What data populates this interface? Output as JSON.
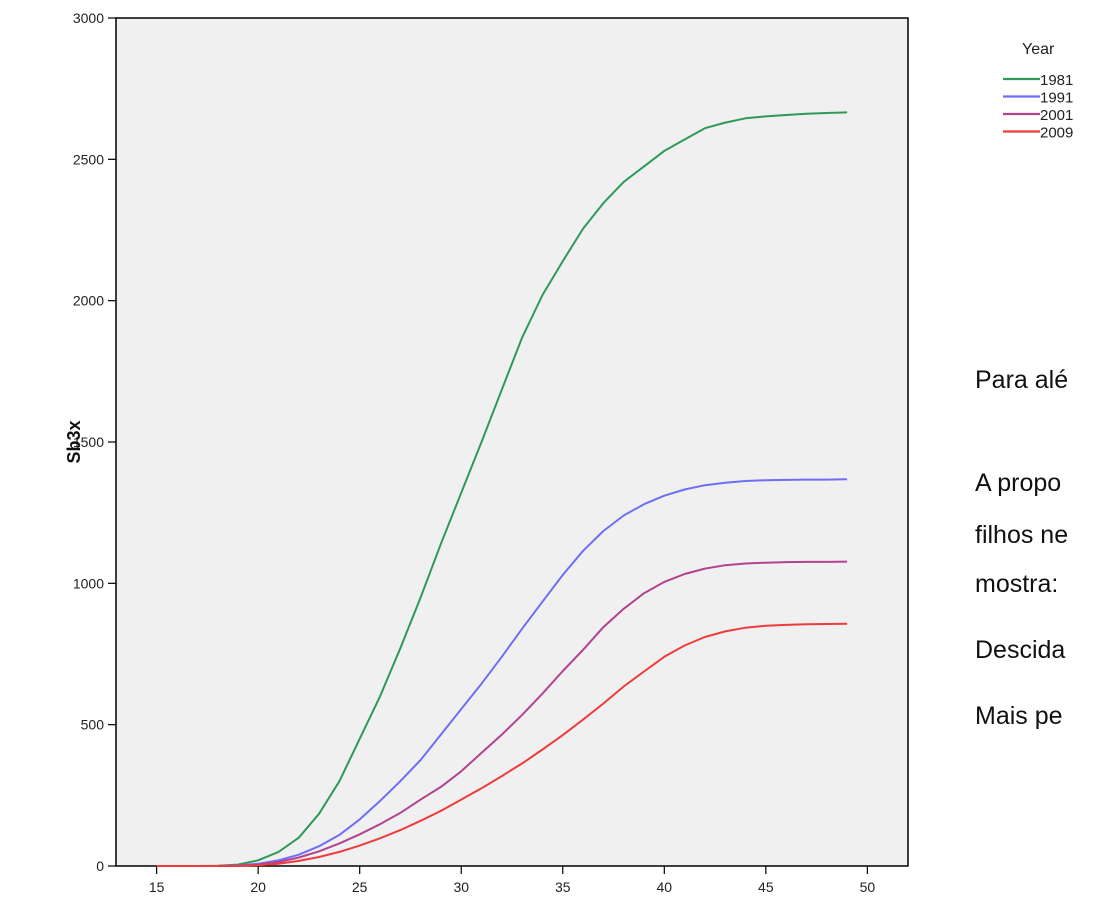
{
  "chart_data": {
    "type": "line",
    "xlabel": "",
    "ylabel": "Sb3x",
    "xlim": [
      13,
      52
    ],
    "ylim": [
      0,
      3000
    ],
    "xticks": [
      15,
      20,
      25,
      30,
      35,
      40,
      45,
      50
    ],
    "yticks": [
      0,
      500,
      1000,
      1500,
      2000,
      2500,
      3000
    ],
    "grid": false,
    "legend": {
      "title": "Year",
      "position": "top-right, outside plot"
    },
    "x": [
      15,
      16,
      17,
      18,
      19,
      20,
      21,
      22,
      23,
      24,
      25,
      26,
      27,
      28,
      29,
      30,
      31,
      32,
      33,
      34,
      35,
      36,
      37,
      38,
      39,
      40,
      41,
      42,
      43,
      44,
      45,
      46,
      47,
      48,
      49
    ],
    "series": [
      {
        "name": "1981",
        "color": "#2e9a57",
        "values": [
          0,
          0,
          0,
          1,
          5,
          20,
          50,
          100,
          185,
          300,
          450,
          600,
          770,
          950,
          1140,
          1320,
          1500,
          1685,
          1870,
          2020,
          2140,
          2255,
          2345,
          2420,
          2475,
          2530,
          2570,
          2610,
          2630,
          2645,
          2652,
          2657,
          2661,
          2664,
          2666
        ]
      },
      {
        "name": "1991",
        "color": "#6e6ef5",
        "values": [
          0,
          0,
          0,
          0,
          2,
          8,
          20,
          40,
          70,
          110,
          165,
          230,
          300,
          375,
          465,
          555,
          645,
          740,
          840,
          935,
          1030,
          1115,
          1185,
          1240,
          1280,
          1310,
          1332,
          1347,
          1356,
          1362,
          1365,
          1366,
          1367,
          1367,
          1368
        ]
      },
      {
        "name": "2001",
        "color": "#b3428f",
        "values": [
          0,
          0,
          0,
          0,
          1,
          5,
          14,
          30,
          52,
          80,
          112,
          148,
          188,
          235,
          280,
          335,
          400,
          465,
          535,
          610,
          690,
          765,
          845,
          910,
          965,
          1005,
          1033,
          1052,
          1064,
          1070,
          1073,
          1075,
          1076,
          1076,
          1077
        ]
      },
      {
        "name": "2009",
        "color": "#ee3b3b",
        "values": [
          0,
          0,
          0,
          0,
          1,
          3,
          8,
          18,
          32,
          50,
          72,
          98,
          127,
          160,
          195,
          235,
          275,
          318,
          363,
          412,
          463,
          518,
          575,
          635,
          688,
          740,
          780,
          810,
          830,
          843,
          850,
          853,
          855,
          856,
          857
        ]
      }
    ]
  },
  "side_text": [
    "Para alé",
    "A propo",
    "filhos ne",
    "mostra:",
    "Descida",
    "Mais pe"
  ],
  "colors": {
    "plot_background": "#f0f0f0",
    "axis": "#000000"
  }
}
